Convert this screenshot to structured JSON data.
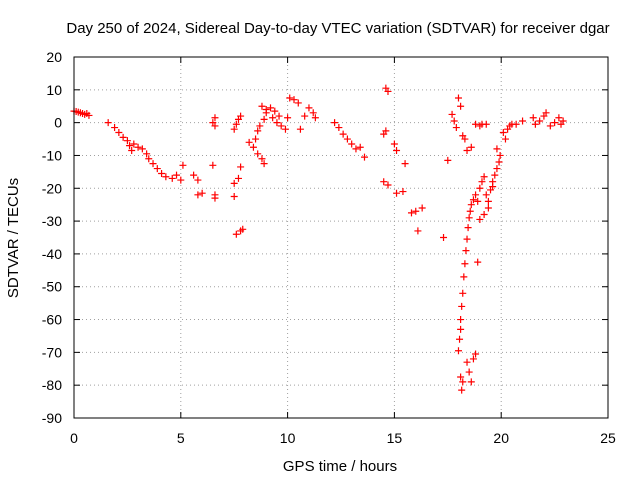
{
  "chart_data": {
    "type": "scatter",
    "title": "Day 250 of 2024, Sidereal Day-to-day VTEC variation (SDTVAR) for receiver dgar",
    "xlabel": "GPS time / hours",
    "ylabel": "SDTVAR / TECUs",
    "xlim": [
      0,
      25
    ],
    "ylim": [
      -90,
      20
    ],
    "xticks": [
      0,
      5,
      10,
      15,
      20,
      25
    ],
    "yticks": [
      -90,
      -80,
      -70,
      -60,
      -50,
      -40,
      -30,
      -20,
      -10,
      0,
      10,
      20
    ],
    "grid": true,
    "marker": "+",
    "color": "#ff0000",
    "series": [
      {
        "name": "SDTVAR",
        "points": [
          [
            0.0,
            3.5
          ],
          [
            0.1,
            3.4
          ],
          [
            0.2,
            3.2
          ],
          [
            0.3,
            3.0
          ],
          [
            0.4,
            2.8
          ],
          [
            0.5,
            2.5
          ],
          [
            0.6,
            2.8
          ],
          [
            0.7,
            2.2
          ],
          [
            1.6,
            0.0
          ],
          [
            1.9,
            -1.5
          ],
          [
            2.1,
            -3.0
          ],
          [
            2.3,
            -4.5
          ],
          [
            2.5,
            -5.5
          ],
          [
            2.6,
            -7.0
          ],
          [
            2.7,
            -8.5
          ],
          [
            2.8,
            -6.5
          ],
          [
            3.0,
            -7.5
          ],
          [
            3.2,
            -8.0
          ],
          [
            3.4,
            -9.5
          ],
          [
            3.5,
            -11.0
          ],
          [
            3.7,
            -12.5
          ],
          [
            3.9,
            -14.0
          ],
          [
            4.1,
            -15.5
          ],
          [
            4.3,
            -16.5
          ],
          [
            4.6,
            -17.0
          ],
          [
            4.8,
            -16.0
          ],
          [
            5.0,
            -17.5
          ],
          [
            5.1,
            -13.0
          ],
          [
            5.6,
            -16.0
          ],
          [
            5.8,
            -17.5
          ],
          [
            5.8,
            -22.0
          ],
          [
            6.0,
            -21.5
          ],
          [
            6.5,
            -13.0
          ],
          [
            6.6,
            -22.0
          ],
          [
            6.6,
            -23.0
          ],
          [
            6.5,
            0.0
          ],
          [
            6.6,
            1.5
          ],
          [
            6.6,
            -1.0
          ],
          [
            7.5,
            -22.5
          ],
          [
            7.5,
            -18.5
          ],
          [
            7.7,
            -17.0
          ],
          [
            7.8,
            -13.5
          ],
          [
            7.6,
            -34.0
          ],
          [
            7.8,
            -33.0
          ],
          [
            7.9,
            -32.5
          ],
          [
            7.5,
            -2.0
          ],
          [
            7.6,
            -0.5
          ],
          [
            7.7,
            1.0
          ],
          [
            7.8,
            2.0
          ],
          [
            8.2,
            -6.0
          ],
          [
            8.4,
            -7.5
          ],
          [
            8.6,
            -9.5
          ],
          [
            8.8,
            -11.0
          ],
          [
            8.9,
            -12.5
          ],
          [
            8.5,
            -5.0
          ],
          [
            8.6,
            -2.5
          ],
          [
            8.7,
            -1.0
          ],
          [
            8.9,
            1.0
          ],
          [
            9.0,
            3.0
          ],
          [
            9.2,
            4.5
          ],
          [
            9.4,
            3.5
          ],
          [
            9.6,
            2.0
          ],
          [
            8.8,
            5.0
          ],
          [
            9.0,
            4.0
          ],
          [
            9.3,
            1.5
          ],
          [
            9.5,
            0.0
          ],
          [
            9.7,
            -1.0
          ],
          [
            9.9,
            -2.0
          ],
          [
            10.0,
            1.5
          ],
          [
            10.1,
            7.5
          ],
          [
            10.3,
            7.0
          ],
          [
            10.5,
            6.0
          ],
          [
            10.6,
            -2.0
          ],
          [
            10.8,
            2.0
          ],
          [
            11.0,
            4.5
          ],
          [
            11.2,
            3.0
          ],
          [
            11.3,
            1.5
          ],
          [
            12.2,
            0.0
          ],
          [
            12.4,
            -1.5
          ],
          [
            12.6,
            -3.5
          ],
          [
            12.8,
            -5.0
          ],
          [
            13.0,
            -6.5
          ],
          [
            13.2,
            -8.0
          ],
          [
            13.4,
            -7.5
          ],
          [
            13.6,
            -10.5
          ],
          [
            14.5,
            -3.5
          ],
          [
            14.6,
            -2.5
          ],
          [
            14.5,
            -18.0
          ],
          [
            14.7,
            -19.0
          ],
          [
            14.6,
            10.5
          ],
          [
            14.7,
            9.5
          ],
          [
            15.0,
            -6.5
          ],
          [
            15.1,
            -8.5
          ],
          [
            15.1,
            -21.5
          ],
          [
            15.4,
            -21.0
          ],
          [
            15.5,
            -12.5
          ],
          [
            15.8,
            -27.5
          ],
          [
            16.0,
            -27.0
          ],
          [
            16.1,
            -33.0
          ],
          [
            16.3,
            -26.0
          ],
          [
            17.3,
            -35.0
          ],
          [
            17.5,
            -11.5
          ],
          [
            17.7,
            2.5
          ],
          [
            17.8,
            0.5
          ],
          [
            17.9,
            -1.5
          ],
          [
            18.0,
            7.5
          ],
          [
            18.1,
            5.0
          ],
          [
            18.3,
            -5.0
          ],
          [
            18.4,
            -8.5
          ],
          [
            18.2,
            -4.0
          ],
          [
            18.6,
            -7.5
          ],
          [
            18.0,
            -69.5
          ],
          [
            18.05,
            -66.0
          ],
          [
            18.1,
            -63.0
          ],
          [
            18.1,
            -60.0
          ],
          [
            18.15,
            -56.0
          ],
          [
            18.2,
            -52.0
          ],
          [
            18.25,
            -47.0
          ],
          [
            18.3,
            -43.0
          ],
          [
            18.35,
            -39.0
          ],
          [
            18.4,
            -35.5
          ],
          [
            18.45,
            -32.0
          ],
          [
            18.5,
            -29.0
          ],
          [
            18.55,
            -27.0
          ],
          [
            18.6,
            -25.0
          ],
          [
            18.7,
            -23.5
          ],
          [
            18.8,
            -22.0
          ],
          [
            18.9,
            -24.0
          ],
          [
            18.1,
            -77.5
          ],
          [
            18.2,
            -79.0
          ],
          [
            18.15,
            -81.5
          ],
          [
            18.5,
            -76.0
          ],
          [
            18.6,
            -79.0
          ],
          [
            18.7,
            -72.0
          ],
          [
            18.8,
            -70.5
          ],
          [
            18.4,
            -73.0
          ],
          [
            18.9,
            -42.5
          ],
          [
            18.8,
            -0.5
          ],
          [
            19.0,
            -1.0
          ],
          [
            19.1,
            -0.5
          ],
          [
            19.3,
            -0.5
          ],
          [
            19.0,
            -20.0
          ],
          [
            19.1,
            -18.0
          ],
          [
            19.2,
            -16.5
          ],
          [
            19.3,
            -22.0
          ],
          [
            19.4,
            -24.0
          ],
          [
            19.5,
            -20.5
          ],
          [
            19.6,
            -18.0
          ],
          [
            19.7,
            -16.0
          ],
          [
            19.8,
            -14.0
          ],
          [
            19.9,
            -12.0
          ],
          [
            19.95,
            -10.0
          ],
          [
            19.8,
            -8.0
          ],
          [
            19.6,
            -19.5
          ],
          [
            19.4,
            -26.0
          ],
          [
            19.2,
            -28.0
          ],
          [
            19.0,
            -29.5
          ],
          [
            20.1,
            -3.0
          ],
          [
            20.3,
            -2.0
          ],
          [
            20.4,
            -1.0
          ],
          [
            20.5,
            -0.5
          ],
          [
            20.7,
            -0.5
          ],
          [
            20.2,
            -5.0
          ],
          [
            21.0,
            0.5
          ],
          [
            21.5,
            1.5
          ],
          [
            21.6,
            -0.5
          ],
          [
            21.8,
            0.5
          ],
          [
            22.0,
            2.0
          ],
          [
            22.1,
            3.0
          ],
          [
            22.3,
            -1.0
          ],
          [
            22.5,
            0.0
          ],
          [
            22.7,
            1.5
          ],
          [
            22.8,
            -0.5
          ],
          [
            22.9,
            0.5
          ]
        ]
      }
    ]
  }
}
